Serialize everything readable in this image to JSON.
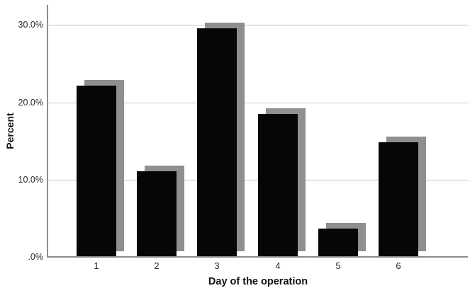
{
  "chart_data": {
    "type": "bar",
    "title": "",
    "xlabel": "Day of the operation",
    "ylabel": "Percent",
    "categories": [
      "1",
      "2",
      "3",
      "4",
      "5",
      "6"
    ],
    "series": [
      {
        "name": "Percent",
        "values": [
          22.2,
          11.1,
          29.6,
          18.5,
          3.7,
          14.8
        ]
      }
    ],
    "y_ticks": [
      {
        "label": ".0%",
        "value": 0
      },
      {
        "label": "10.0%",
        "value": 10
      },
      {
        "label": "20.0%",
        "value": 20
      },
      {
        "label": "30.0%",
        "value": 30
      }
    ],
    "ylim": [
      0,
      32.6
    ],
    "grid": true,
    "legend": false,
    "style": {
      "bar_color": "#060606",
      "shadow_color": "#8f8f8f",
      "shadow_offset": "up-right",
      "gridline_color": "#c6c6c6",
      "axis_color": "#8c8c8c",
      "background": "#ffffff"
    }
  }
}
